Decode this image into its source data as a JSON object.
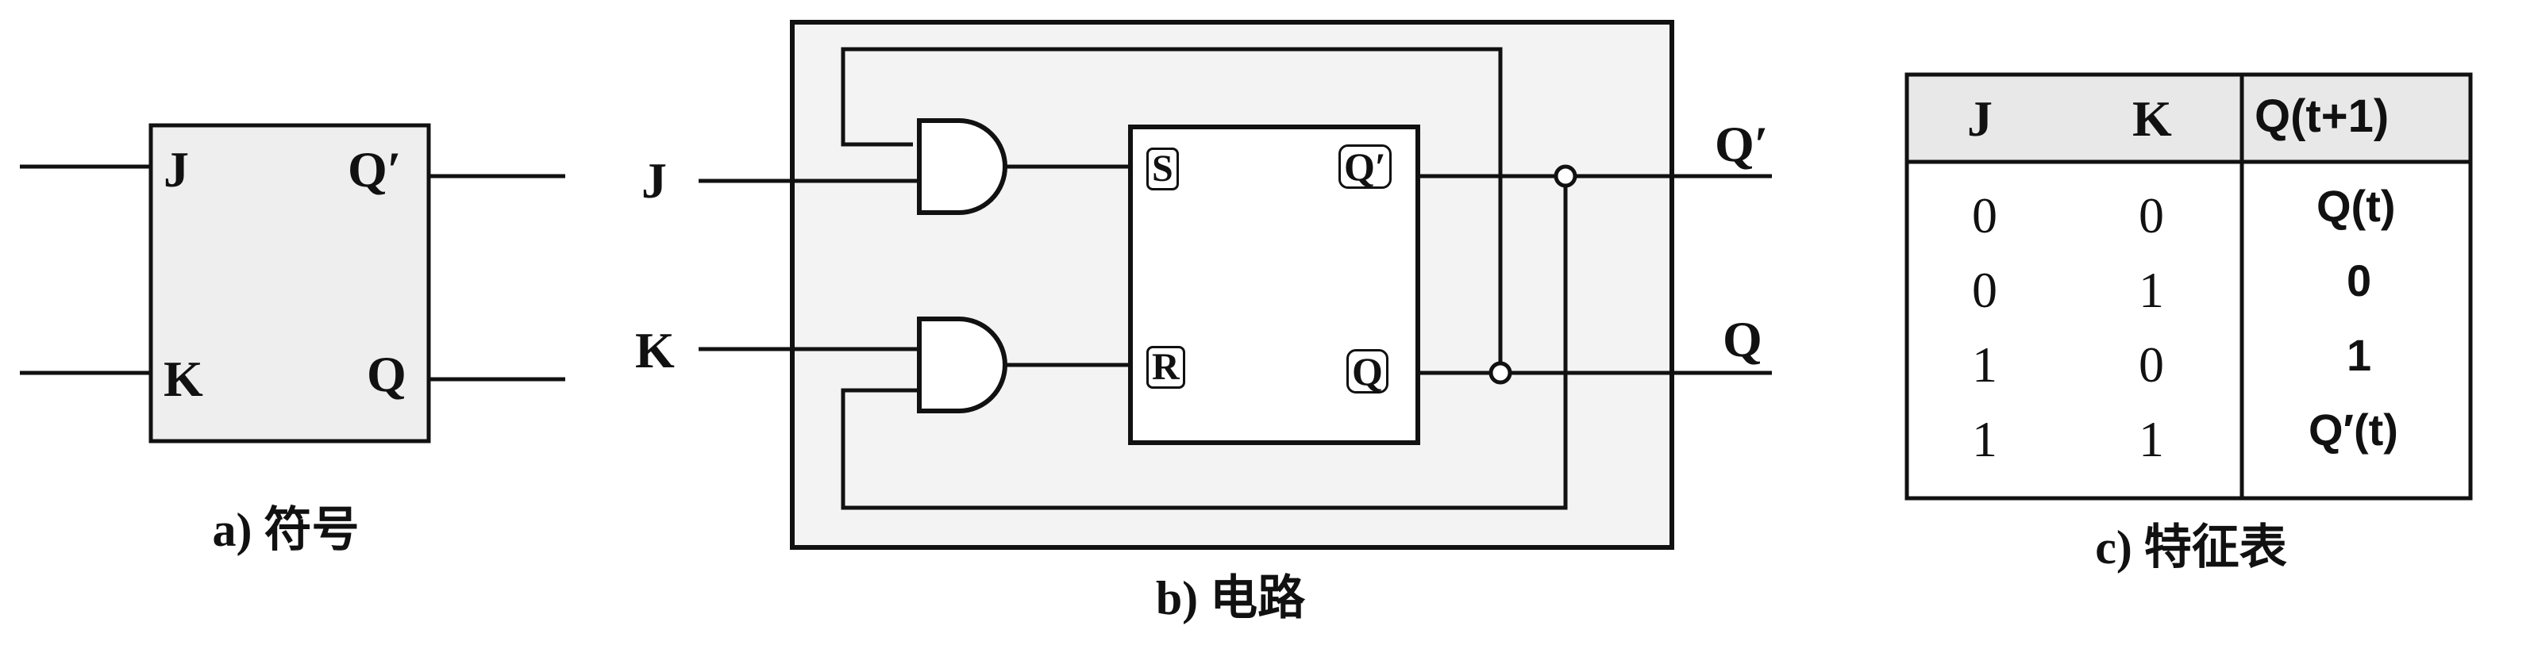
{
  "symbol": {
    "pin_j": "J",
    "pin_k": "K",
    "pin_qprime": "Q′",
    "pin_q": "Q",
    "caption": "a) 符号"
  },
  "circuit": {
    "input_j": "J",
    "input_k": "K",
    "latch_s": "S",
    "latch_r": "R",
    "latch_qprime": "Q′",
    "latch_q": "Q",
    "output_qprime": "Q′",
    "output_q": "Q",
    "caption": "b) 电路"
  },
  "table": {
    "headers": [
      "J",
      "K",
      "Q(t+1)"
    ],
    "rows": [
      [
        "0",
        "0",
        "Q(t)"
      ],
      [
        "0",
        "1",
        "0"
      ],
      [
        "1",
        "0",
        "1"
      ],
      [
        "1",
        "1",
        "Q′(t)"
      ]
    ],
    "caption": "c) 特征表"
  }
}
